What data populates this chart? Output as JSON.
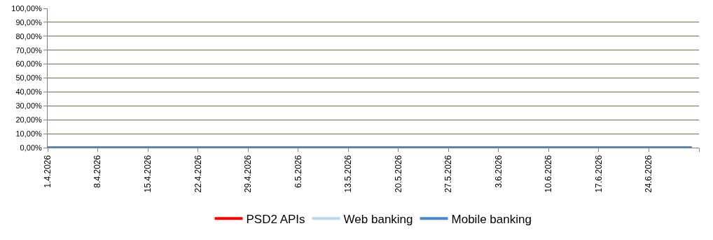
{
  "chart_data": {
    "type": "line",
    "x": [
      "2026-04-01",
      "2026-06-30"
    ],
    "series": [
      {
        "name": "PSD2 APIs",
        "color": "#ff0000",
        "values": [
          null,
          null
        ]
      },
      {
        "name": "Web banking",
        "color": "#b9d7ee",
        "values": [
          null,
          null
        ]
      },
      {
        "name": "Mobile banking",
        "color": "#4a86d0",
        "values": [
          0,
          0
        ]
      }
    ],
    "xlim": [
      "2026-04-01",
      "2026-07-01"
    ],
    "xticks": [
      {
        "value": "2026-04-01",
        "label": "1.4.2026"
      },
      {
        "value": "2026-04-08",
        "label": "8.4.2026"
      },
      {
        "value": "2026-04-15",
        "label": "15.4.2026"
      },
      {
        "value": "2026-04-22",
        "label": "22.4.2026"
      },
      {
        "value": "2026-04-29",
        "label": "29.4.2026"
      },
      {
        "value": "2026-05-06",
        "label": "6.5.2026"
      },
      {
        "value": "2026-05-13",
        "label": "13.5.2026"
      },
      {
        "value": "2026-05-20",
        "label": "20.5.2026"
      },
      {
        "value": "2026-05-27",
        "label": "27.5.2026"
      },
      {
        "value": "2026-06-03",
        "label": "3.6.2026"
      },
      {
        "value": "2026-06-10",
        "label": "10.6.2026"
      },
      {
        "value": "2026-06-17",
        "label": "17.6.2026"
      },
      {
        "value": "2026-06-24",
        "label": "24.6.2026"
      },
      {
        "value": "2026-07-01",
        "label": null
      }
    ],
    "ylim": [
      0,
      100
    ],
    "yticks": [
      {
        "value": 0,
        "label": "0,00%"
      },
      {
        "value": 10,
        "label": "10,00%"
      },
      {
        "value": 20,
        "label": "20,00%"
      },
      {
        "value": 30,
        "label": "30,00%"
      },
      {
        "value": 40,
        "label": "40,00%"
      },
      {
        "value": 50,
        "label": "50,00%"
      },
      {
        "value": 60,
        "label": "60,00%"
      },
      {
        "value": 70,
        "label": "70,00%"
      },
      {
        "value": 80,
        "label": "80,00%"
      },
      {
        "value": 90,
        "label": "90,00%"
      },
      {
        "value": 100,
        "label": "100,00%"
      }
    ],
    "grid": "y",
    "legend": "bottom",
    "marker": "none",
    "line_style": "solid"
  }
}
